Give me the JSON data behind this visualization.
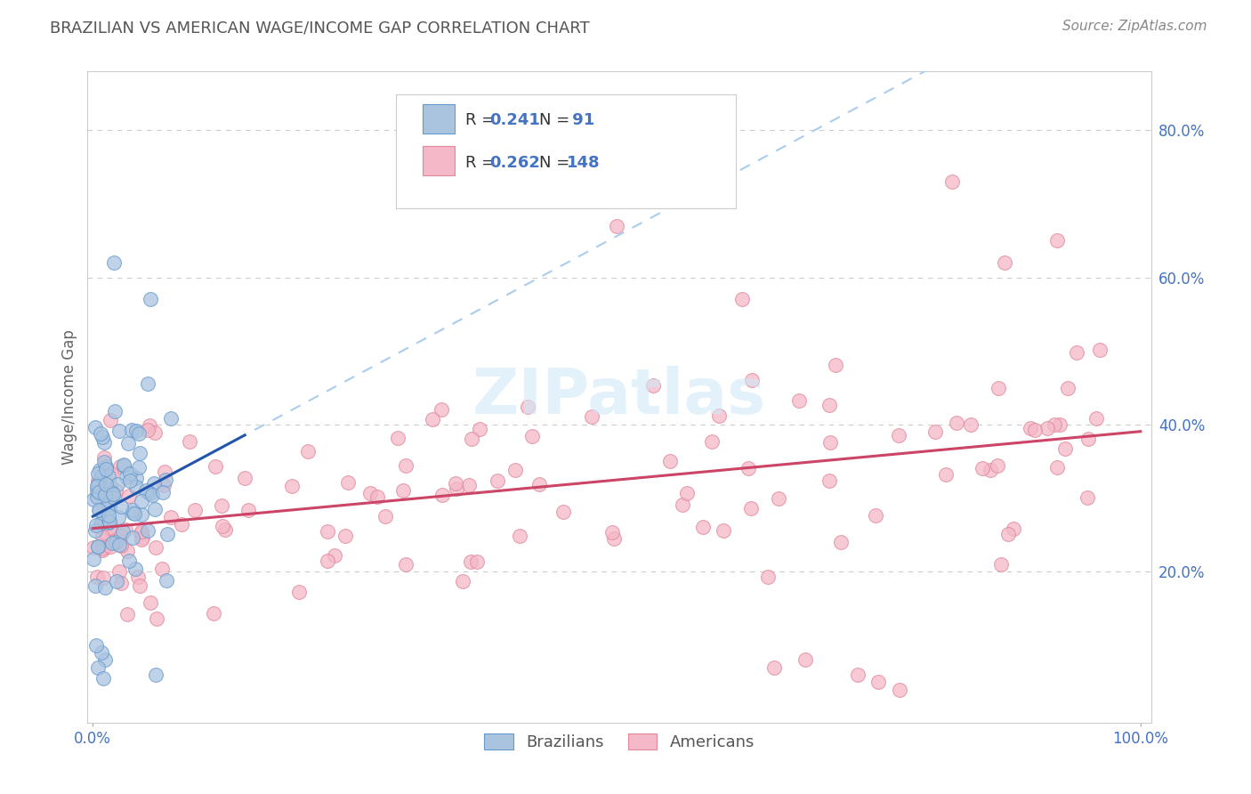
{
  "title": "BRAZILIAN VS AMERICAN WAGE/INCOME GAP CORRELATION CHART",
  "source": "Source: ZipAtlas.com",
  "ylabel": "Wage/Income Gap",
  "watermark": "ZIPatlas",
  "legend_blue_r": "R = 0.241",
  "legend_blue_n": "N =  91",
  "legend_pink_r": "R = 0.262",
  "legend_pink_n": "N = 148",
  "blue_dot_face": "#aac4e0",
  "blue_dot_edge": "#6699cc",
  "pink_dot_face": "#f4b8c8",
  "pink_dot_edge": "#e08898",
  "trend_blue_color": "#2255aa",
  "trend_pink_color": "#cc4466",
  "trend_dashed_color": "#aaccee",
  "bg_color": "#ffffff",
  "grid_color": "#cccccc",
  "title_color": "#555555",
  "axis_label_color": "#4472c4",
  "legend_text_color": "#333333",
  "watermark_color": "#d0e8f8"
}
